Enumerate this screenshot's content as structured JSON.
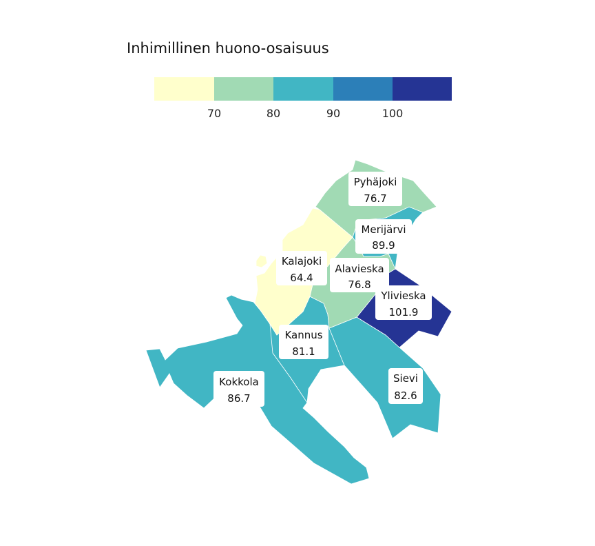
{
  "legend": {
    "title": "Inhimillinen huono-osaisuus",
    "breaks": [
      "70",
      "80",
      "90",
      "100"
    ],
    "colors": [
      "#ffffcc",
      "#a1dab4",
      "#41b6c4",
      "#2c7fb8",
      "#253494"
    ]
  },
  "regions": [
    {
      "id": "pyhajoki",
      "name": "Pyhäjoki",
      "value": "76.7",
      "color": "#a1dab4"
    },
    {
      "id": "merijarvi",
      "name": "Merijärvi",
      "value": "89.9",
      "color": "#41b6c4"
    },
    {
      "id": "kalajoki",
      "name": "Kalajoki",
      "value": "64.4",
      "color": "#ffffcc"
    },
    {
      "id": "alavieska",
      "name": "Alavieska",
      "value": "76.8",
      "color": "#a1dab4"
    },
    {
      "id": "ylivieska",
      "name": "Ylivieska",
      "value": "101.9",
      "color": "#253494"
    },
    {
      "id": "kannus",
      "name": "Kannus",
      "value": "81.1",
      "color": "#41b6c4"
    },
    {
      "id": "sievi",
      "name": "Sievi",
      "value": "82.6",
      "color": "#41b6c4"
    },
    {
      "id": "kokkola",
      "name": "Kokkola",
      "value": "86.7",
      "color": "#41b6c4"
    }
  ]
}
